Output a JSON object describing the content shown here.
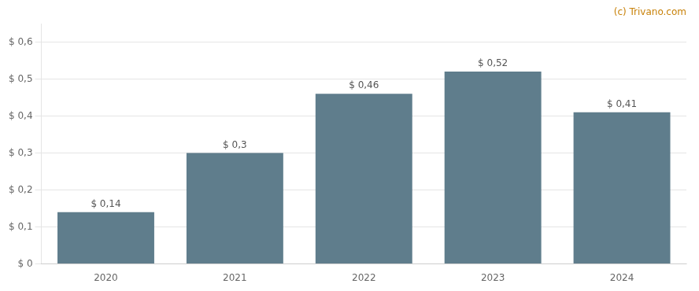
{
  "chart_data": {
    "type": "bar",
    "categories": [
      "2020",
      "2021",
      "2022",
      "2023",
      "2024"
    ],
    "values": [
      0.14,
      0.3,
      0.46,
      0.52,
      0.41
    ],
    "value_labels": [
      "$ 0,14",
      "$ 0,3",
      "$ 0,46",
      "$ 0,52",
      "$ 0,41"
    ],
    "data_labels": true,
    "color": "#5f7d8c",
    "ylim": [
      0,
      0.65
    ],
    "yticks": [
      {
        "value": 0,
        "label": "$ 0"
      },
      {
        "value": 0.1,
        "label": "$ 0,1"
      },
      {
        "value": 0.2,
        "label": "$ 0,2"
      },
      {
        "value": 0.3,
        "label": "$ 0,3"
      },
      {
        "value": 0.4,
        "label": "$ 0,4"
      },
      {
        "value": 0.5,
        "label": "$ 0,5"
      },
      {
        "value": 0.6,
        "label": "$ 0,6"
      }
    ],
    "grid": true,
    "annotations": [
      {
        "text": "(c) Trivano.com",
        "color": "#c8820a"
      }
    ]
  }
}
